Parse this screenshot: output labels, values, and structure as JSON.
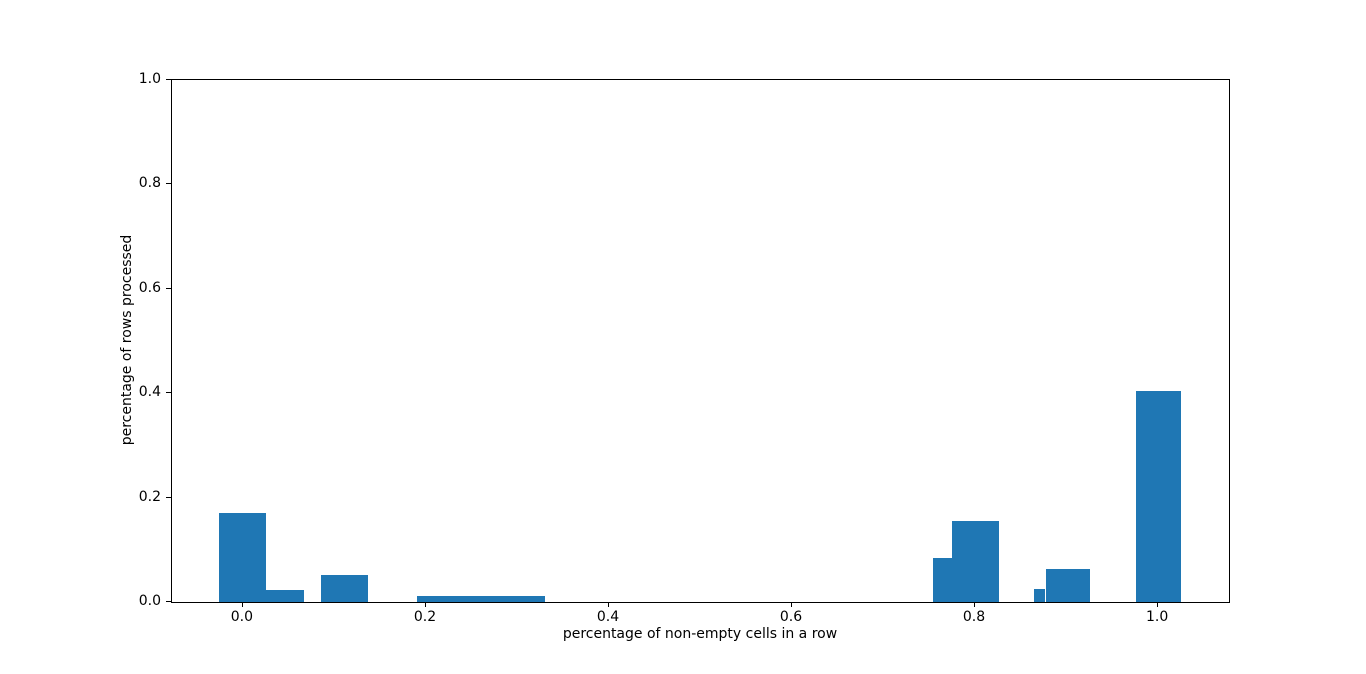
{
  "chart_data": {
    "type": "bar",
    "subtype": "histogram",
    "title": "",
    "xlabel": "percentage of non-empty cells in a row",
    "ylabel": "percentage of rows processed",
    "xlim": [
      -0.0775,
      1.0775
    ],
    "ylim": [
      0.0,
      1.0
    ],
    "grid": false,
    "legend": "none",
    "bar_color": "#1f77b4",
    "axis_color": "#000000",
    "background_color": "#ffffff",
    "x_ticks": {
      "values": [
        0.0,
        0.2,
        0.4,
        0.6,
        0.8,
        1.0
      ],
      "labels": [
        "0.0",
        "0.2",
        "0.4",
        "0.6",
        "0.8",
        "1.0"
      ]
    },
    "y_ticks": {
      "values": [
        0.0,
        0.2,
        0.4,
        0.6,
        0.8,
        1.0
      ],
      "labels": [
        "0.0",
        "0.2",
        "0.4",
        "0.6",
        "0.8",
        "1.0"
      ]
    },
    "bars": [
      {
        "x0": -0.026,
        "x1": 0.025,
        "height": 0.17
      },
      {
        "x0": 0.025,
        "x1": 0.067,
        "height": 0.024
      },
      {
        "x0": 0.085,
        "x1": 0.137,
        "height": 0.051
      },
      {
        "x0": 0.19,
        "x1": 0.33,
        "height": 0.012
      },
      {
        "x0": 0.754,
        "x1": 0.775,
        "height": 0.084
      },
      {
        "x0": 0.775,
        "x1": 0.826,
        "height": 0.156
      },
      {
        "x0": 0.864,
        "x1": 0.877,
        "height": 0.025
      },
      {
        "x0": 0.877,
        "x1": 0.926,
        "height": 0.064
      },
      {
        "x0": 0.976,
        "x1": 1.025,
        "height": 0.405
      }
    ]
  }
}
